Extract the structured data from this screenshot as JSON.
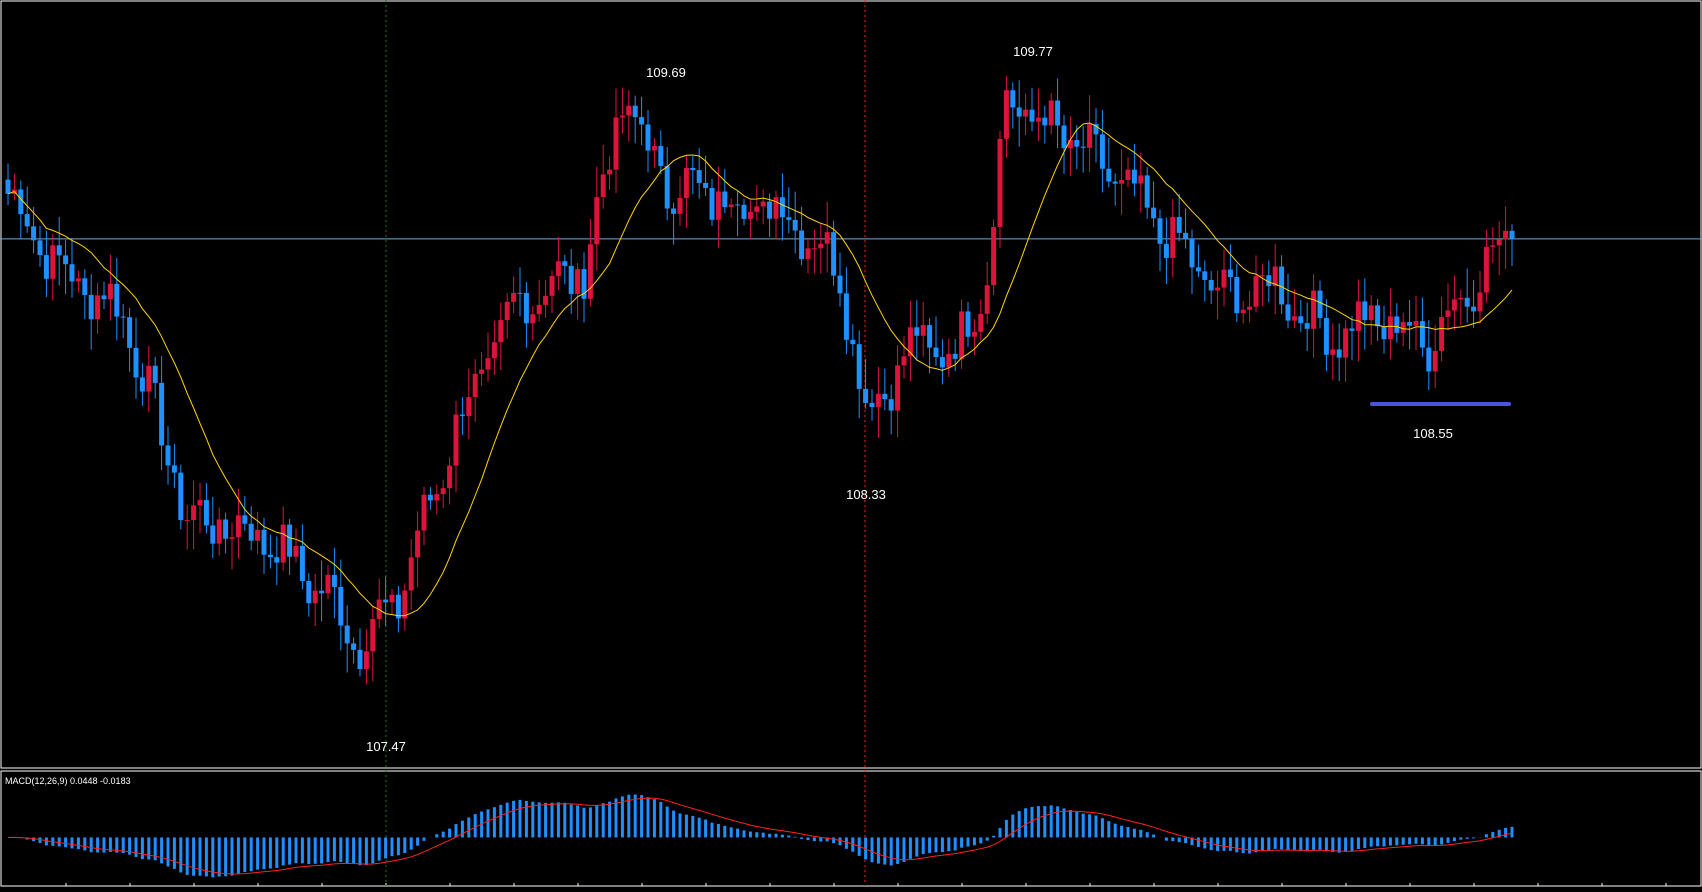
{
  "chart_data": {
    "type": "candlestick",
    "colors": {
      "background": "#000000",
      "up_candle": "#dc143c",
      "down_candle": "#1e90ff",
      "moving_average": "#ffd700",
      "current_price_line": "#6fa8dc",
      "vertical_marker_1": "#1a7a1a",
      "vertical_marker_2": "#ff2020",
      "support_line": "#4a55dd",
      "macd_histogram": "#1e90ff",
      "macd_signal": "#ff2020",
      "label_text": "#ffffff",
      "frame": "#ffffff"
    },
    "price_range": [
      107.2,
      109.9
    ],
    "current_price": 109.06,
    "annotations": [
      {
        "name": "low-1",
        "text": "107.47",
        "price": 107.47
      },
      {
        "name": "high-1",
        "text": "109.69",
        "price": 109.69
      },
      {
        "name": "low-2",
        "text": "108.33",
        "price": 108.33
      },
      {
        "name": "high-2",
        "text": "109.77",
        "price": 109.77
      },
      {
        "name": "low-3",
        "text": "108.55",
        "price": 108.55
      }
    ],
    "support_level": 108.55,
    "macd_label": "MACD(12,26,9) 0.0448 -0.0183",
    "macd_range": [
      -0.28,
      0.38
    ],
    "key_points": [
      {
        "i": 0,
        "p": 109.22
      },
      {
        "i": 8,
        "p": 108.95
      },
      {
        "i": 18,
        "p": 108.8
      },
      {
        "i": 28,
        "p": 108.08
      },
      {
        "i": 40,
        "p": 108.02
      },
      {
        "i": 50,
        "p": 107.8
      },
      {
        "i": 55,
        "p": 107.64
      },
      {
        "i": 61,
        "p": 107.8
      },
      {
        "i": 70,
        "p": 108.4
      },
      {
        "i": 80,
        "p": 108.85
      },
      {
        "i": 90,
        "p": 108.95
      },
      {
        "i": 96,
        "p": 109.55
      },
      {
        "i": 103,
        "p": 109.25
      },
      {
        "i": 113,
        "p": 109.2
      },
      {
        "i": 122,
        "p": 109.15
      },
      {
        "i": 130,
        "p": 108.95
      },
      {
        "i": 134,
        "p": 108.45
      },
      {
        "i": 142,
        "p": 108.7
      },
      {
        "i": 148,
        "p": 108.65
      },
      {
        "i": 153,
        "p": 108.95
      },
      {
        "i": 156,
        "p": 109.55
      },
      {
        "i": 163,
        "p": 109.45
      },
      {
        "i": 172,
        "p": 109.3
      },
      {
        "i": 180,
        "p": 109.1
      },
      {
        "i": 190,
        "p": 108.85
      },
      {
        "i": 198,
        "p": 108.9
      },
      {
        "i": 206,
        "p": 108.72
      },
      {
        "i": 214,
        "p": 108.78
      },
      {
        "i": 222,
        "p": 108.7
      },
      {
        "i": 230,
        "p": 108.95
      },
      {
        "i": 235,
        "p": 109.06
      }
    ]
  }
}
